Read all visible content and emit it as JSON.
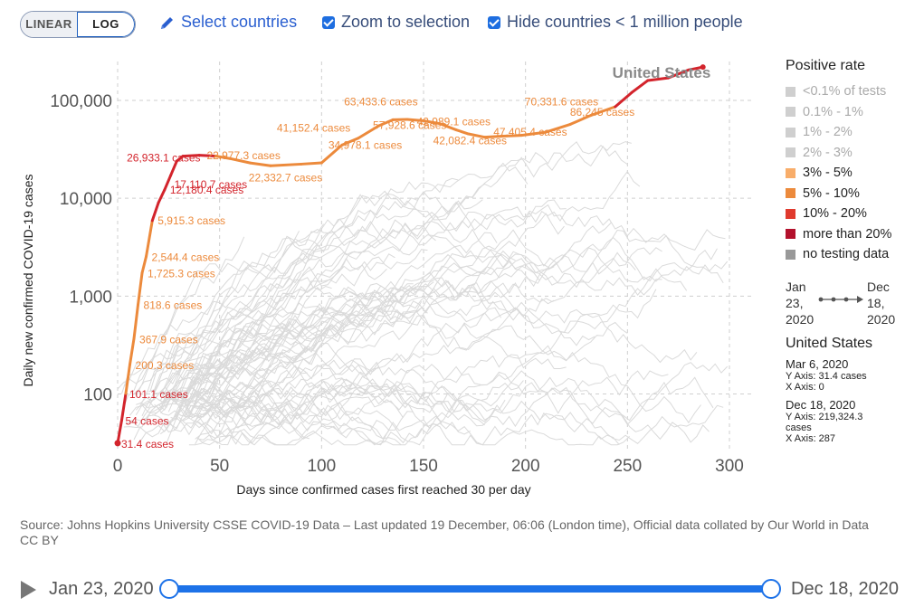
{
  "toolbar": {
    "linear_label": "LINEAR",
    "log_label": "LOG",
    "select_countries": "Select countries",
    "zoom_to_selection": "Zoom to selection",
    "hide_small": "Hide countries < 1 million people"
  },
  "legend": {
    "title": "Positive rate",
    "items": [
      {
        "label": "<0.1% of tests",
        "color": "#cfcfcf",
        "active": false
      },
      {
        "label": "0.1% - 1%",
        "color": "#cfcfcf",
        "active": false
      },
      {
        "label": "1% - 2%",
        "color": "#cfcfcf",
        "active": false
      },
      {
        "label": "2% - 3%",
        "color": "#cfcfcf",
        "active": false
      },
      {
        "label": "3% - 5%",
        "color": "#f8ad6a",
        "active": true
      },
      {
        "label": "5% - 10%",
        "color": "#ec8a3c",
        "active": true
      },
      {
        "label": "10% - 20%",
        "color": "#e03a2e",
        "active": true
      },
      {
        "label": "more than 20%",
        "color": "#b3112c",
        "active": true
      },
      {
        "label": "no testing data",
        "color": "#999999",
        "active": true
      }
    ]
  },
  "time_legend": {
    "start_month": "Jan",
    "start_day": "23,",
    "start_year": "2020",
    "end_month": "Dec",
    "end_day": "18,",
    "end_year": "2020"
  },
  "info": {
    "country": "United States",
    "start": {
      "date": "Mar 6, 2020",
      "y": "Y Axis: 31.4 cases",
      "x": "X Axis: 0"
    },
    "end": {
      "date": "Dec 18, 2020",
      "y": "Y Axis: 219,324.3",
      "y2": "cases",
      "x": "X Axis: 287"
    }
  },
  "footer": {
    "source": "Source: Johns Hopkins University CSSE COVID-19 Data – Last updated 19 December, 06:06 (London time), Official data collated by Our World in Data",
    "license": "CC BY"
  },
  "timeline": {
    "start": "Jan 23, 2020",
    "end": "Dec 18, 2020",
    "start_fraction": 0,
    "end_fraction": 1
  },
  "chart_data": {
    "type": "line",
    "scale": "log",
    "xlabel": "Days since confirmed cases first reached 30 per day",
    "ylabel": "Daily new confirmed COVID-19 cases",
    "xlim": [
      0,
      300
    ],
    "ylim": [
      30,
      250000
    ],
    "x_ticks": [
      0,
      50,
      100,
      150,
      200,
      250,
      300
    ],
    "y_ticks": [
      {
        "value": 100,
        "label": "100"
      },
      {
        "value": 1000,
        "label": "1,000"
      },
      {
        "value": 10000,
        "label": "10,000"
      },
      {
        "value": 100000,
        "label": "100,000"
      }
    ],
    "grid": true,
    "highlight_series": {
      "name": "United States",
      "points": [
        {
          "x": 0,
          "y": 31.4,
          "c": "r"
        },
        {
          "x": 2,
          "y": 54,
          "c": "r"
        },
        {
          "x": 4,
          "y": 101.1,
          "c": "r"
        },
        {
          "x": 6,
          "y": 200.3,
          "c": "o"
        },
        {
          "x": 8,
          "y": 367.9,
          "c": "o"
        },
        {
          "x": 10,
          "y": 818.6,
          "c": "o"
        },
        {
          "x": 12,
          "y": 1725.3,
          "c": "o"
        },
        {
          "x": 14,
          "y": 2544.4,
          "c": "o"
        },
        {
          "x": 17,
          "y": 5915.3,
          "c": "o"
        },
        {
          "x": 20,
          "y": 9000,
          "c": "r"
        },
        {
          "x": 23,
          "y": 12180.4,
          "c": "r"
        },
        {
          "x": 26,
          "y": 17110.7,
          "c": "r"
        },
        {
          "x": 29,
          "y": 24000,
          "c": "r"
        },
        {
          "x": 32,
          "y": 26933.1,
          "c": "r"
        },
        {
          "x": 40,
          "y": 27500,
          "c": "r"
        },
        {
          "x": 48,
          "y": 27000,
          "c": "r"
        },
        {
          "x": 55,
          "y": 25500,
          "c": "o"
        },
        {
          "x": 65,
          "y": 22977.3,
          "c": "o"
        },
        {
          "x": 75,
          "y": 21500,
          "c": "o"
        },
        {
          "x": 90,
          "y": 22332.7,
          "c": "o"
        },
        {
          "x": 100,
          "y": 23000,
          "c": "o"
        },
        {
          "x": 110,
          "y": 34978.1,
          "c": "o"
        },
        {
          "x": 118,
          "y": 41152.4,
          "c": "o"
        },
        {
          "x": 128,
          "y": 55000,
          "c": "o"
        },
        {
          "x": 135,
          "y": 63433.6,
          "c": "o"
        },
        {
          "x": 142,
          "y": 64000,
          "c": "o"
        },
        {
          "x": 150,
          "y": 62000,
          "c": "o"
        },
        {
          "x": 158,
          "y": 57928.6,
          "c": "o"
        },
        {
          "x": 166,
          "y": 50000,
          "c": "o"
        },
        {
          "x": 172,
          "y": 45500,
          "c": "o"
        },
        {
          "x": 180,
          "y": 42082.4,
          "c": "o"
        },
        {
          "x": 188,
          "y": 42989.1,
          "c": "o"
        },
        {
          "x": 198,
          "y": 44000,
          "c": "o"
        },
        {
          "x": 210,
          "y": 47405.4,
          "c": "o"
        },
        {
          "x": 222,
          "y": 57000,
          "c": "o"
        },
        {
          "x": 232,
          "y": 70331.6,
          "c": "o"
        },
        {
          "x": 244,
          "y": 86245,
          "c": "o"
        },
        {
          "x": 252,
          "y": 120000,
          "c": "r"
        },
        {
          "x": 260,
          "y": 160000,
          "c": "r"
        },
        {
          "x": 270,
          "y": 170000,
          "c": "r"
        },
        {
          "x": 280,
          "y": 205000,
          "c": "r"
        },
        {
          "x": 287,
          "y": 219324.3,
          "c": "r"
        }
      ],
      "annotations": [
        {
          "x": 0,
          "y": 31.4,
          "label": "31.4 cases",
          "c": "r"
        },
        {
          "x": 2,
          "y": 54,
          "label": "54 cases",
          "c": "r"
        },
        {
          "x": 4,
          "y": 101.1,
          "label": "101.1 cases",
          "c": "r"
        },
        {
          "x": 6,
          "y": 200.3,
          "label": "200.3 cases",
          "c": "o"
        },
        {
          "x": 8,
          "y": 367.9,
          "label": "367.9 cases",
          "c": "o"
        },
        {
          "x": 10,
          "y": 818.6,
          "label": "818.6 cases",
          "c": "o"
        },
        {
          "x": 12,
          "y": 1725.3,
          "label": "1,725.3 cases",
          "c": "o"
        },
        {
          "x": 14,
          "y": 2544.4,
          "label": "2,544.4 cases",
          "c": "o"
        },
        {
          "x": 17,
          "y": 5915.3,
          "label": "5,915.3 cases",
          "c": "o"
        },
        {
          "x": 23,
          "y": 12180.4,
          "label": "12,180.4 cases",
          "c": "r"
        },
        {
          "x": 26,
          "y": 17110.7,
          "label": "17,110.7 cases",
          "c": "r"
        },
        {
          "x": 32,
          "y": 26933.1,
          "label": "26,933.1 cases",
          "c": "r"
        },
        {
          "x": 65,
          "y": 22977.3,
          "label": "22,977.3 cases",
          "c": "o"
        },
        {
          "x": 90,
          "y": 22332.7,
          "label": "22,332.7 cases",
          "c": "o"
        },
        {
          "x": 110,
          "y": 34978.1,
          "label": "34,978.1 cases",
          "c": "o"
        },
        {
          "x": 118,
          "y": 41152.4,
          "label": "41,152.4 cases",
          "c": "o"
        },
        {
          "x": 135,
          "y": 63433.6,
          "label": "63,433.6 cases",
          "c": "o"
        },
        {
          "x": 158,
          "y": 57928.6,
          "label": "57,928.6 cases",
          "c": "o"
        },
        {
          "x": 180,
          "y": 42082.4,
          "label": "42,082.4 cases",
          "c": "o"
        },
        {
          "x": 188,
          "y": 42989.1,
          "label": "42,989.1 cases",
          "c": "o"
        },
        {
          "x": 210,
          "y": 47405.4,
          "label": "47,405.4 cases",
          "c": "o"
        },
        {
          "x": 232,
          "y": 70331.6,
          "label": "70,331.6 cases",
          "c": "o"
        },
        {
          "x": 244,
          "y": 86245,
          "label": "86,245 cases",
          "c": "o"
        }
      ],
      "end_label": "United States"
    },
    "series_colors": {
      "r": "#d3242c",
      "o": "#ec8a3c",
      "background": "#dadada"
    }
  }
}
